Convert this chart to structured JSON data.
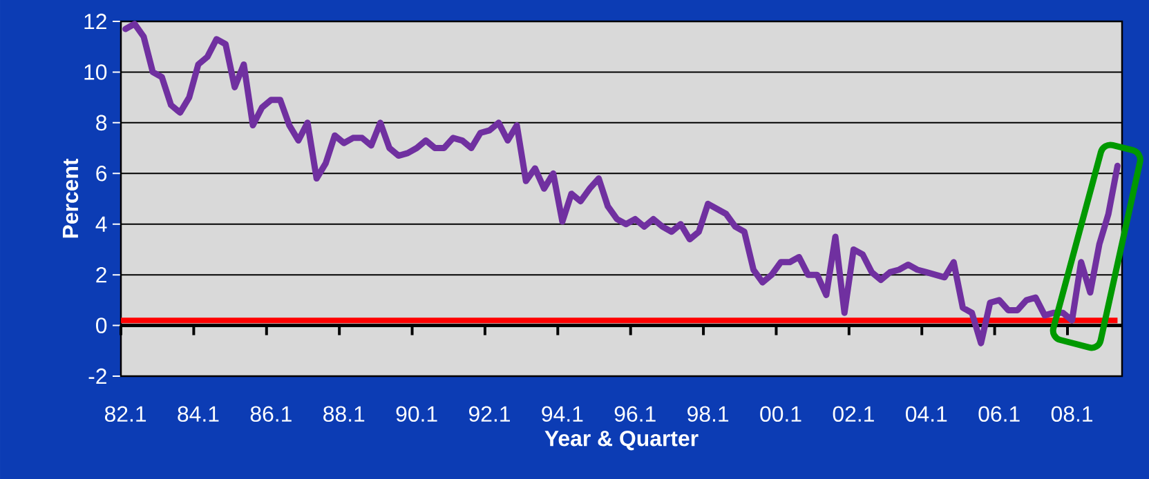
{
  "chart_data": {
    "type": "line",
    "xlabel": "Year & Quarter",
    "ylabel": "Percent",
    "categories": [
      "82.1",
      null,
      null,
      null,
      null,
      null,
      null,
      null,
      "84.1",
      null,
      null,
      null,
      null,
      null,
      null,
      null,
      "86.1",
      null,
      null,
      null,
      null,
      null,
      null,
      null,
      "88.1",
      null,
      null,
      null,
      null,
      null,
      null,
      null,
      "90.1",
      null,
      null,
      null,
      null,
      null,
      null,
      null,
      "92.1",
      null,
      null,
      null,
      null,
      null,
      null,
      null,
      "94.1",
      null,
      null,
      null,
      null,
      null,
      null,
      null,
      "96.1",
      null,
      null,
      null,
      null,
      null,
      null,
      null,
      "98.1",
      null,
      null,
      null,
      null,
      null,
      null,
      null,
      "00.1",
      null,
      null,
      null,
      null,
      null,
      null,
      null,
      "02.1",
      null,
      null,
      null,
      null,
      null,
      null,
      null,
      "04.1",
      null,
      null,
      null,
      null,
      null,
      null,
      null,
      "06.1",
      null,
      null,
      null,
      null,
      null,
      null,
      null,
      "08.1",
      null,
      null,
      null,
      null,
      null
    ],
    "series": [
      {
        "color": "#7030a0",
        "values": [
          11.7,
          11.9,
          11.4,
          10.0,
          9.8,
          8.7,
          8.4,
          9.0,
          10.3,
          10.6,
          11.3,
          11.1,
          9.4,
          10.3,
          7.9,
          8.6,
          8.9,
          8.9,
          7.9,
          7.3,
          8.0,
          5.8,
          6.4,
          7.5,
          7.2,
          7.4,
          7.4,
          7.1,
          8.0,
          7.0,
          6.7,
          6.8,
          7.0,
          7.3,
          7.0,
          7.0,
          7.4,
          7.3,
          7.0,
          7.6,
          7.7,
          8.0,
          7.3,
          7.9,
          5.7,
          6.2,
          5.4,
          6.0,
          4.1,
          5.2,
          4.9,
          5.4,
          5.8,
          4.7,
          4.2,
          4.0,
          4.2,
          3.9,
          4.2,
          3.9,
          3.7,
          4.0,
          3.4,
          3.7,
          4.8,
          4.6,
          4.4,
          3.9,
          3.7,
          2.2,
          1.7,
          2.0,
          2.5,
          2.5,
          2.7,
          2.0,
          2.0,
          1.2,
          3.5,
          0.5,
          3.0,
          2.8,
          2.1,
          1.8,
          2.1,
          2.2,
          2.4,
          2.2,
          2.1,
          2.0,
          1.9,
          2.5,
          0.7,
          0.5,
          -0.7,
          0.9,
          1.0,
          0.6,
          0.6,
          1.0,
          1.1,
          0.4,
          0.5,
          0.5,
          0.2,
          2.5,
          1.3,
          3.2,
          4.4,
          6.3
        ]
      }
    ],
    "ylim": [
      -2,
      12
    ],
    "yticks": [
      -2,
      0,
      2,
      4,
      6,
      8,
      10,
      12
    ],
    "grid": "y",
    "ref_lines": [
      {
        "axis": "y",
        "value": 0.2,
        "color": "#ff0000"
      }
    ]
  }
}
